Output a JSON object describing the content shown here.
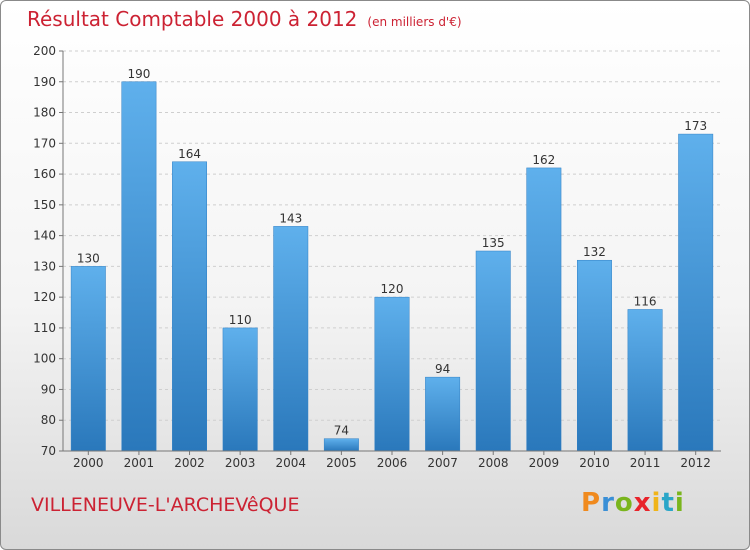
{
  "title": {
    "main": "Résultat Comptable 2000 à 2012",
    "unit": "(en milliers d'€)"
  },
  "location": "VILLENEUVE-L'ARCHEVêQUE",
  "logo": {
    "letters": [
      "P",
      "r",
      "o",
      "x",
      "i",
      "t",
      "i"
    ],
    "colors": [
      "#f08a1e",
      "#3a8fd6",
      "#7ab51d",
      "#e8232a",
      "#f0b418",
      "#2aa6c8",
      "#7ab51d"
    ]
  },
  "chart_data": {
    "type": "bar",
    "categories": [
      "2000",
      "2001",
      "2002",
      "2003",
      "2004",
      "2005",
      "2006",
      "2007",
      "2008",
      "2009",
      "2010",
      "2011",
      "2012"
    ],
    "values": [
      130,
      190,
      164,
      110,
      143,
      74,
      120,
      94,
      135,
      162,
      132,
      116,
      173
    ],
    "title": "Résultat Comptable 2000 à 2012",
    "xlabel": "",
    "ylabel": "",
    "ylim": [
      70,
      200
    ],
    "yticks": [
      70,
      80,
      90,
      100,
      110,
      120,
      130,
      140,
      150,
      160,
      170,
      180,
      190,
      200
    ],
    "grid": true,
    "bar_color": "#4a9ee0"
  }
}
